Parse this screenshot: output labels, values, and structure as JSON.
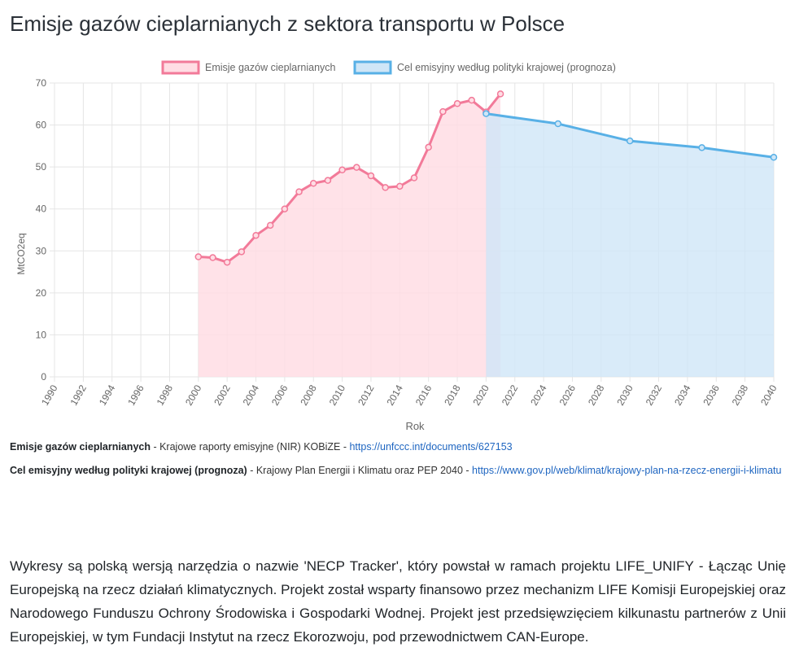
{
  "page": {
    "title": "Emisje gazów cieplarnianych z sektora transportu w Polsce"
  },
  "chart_data": {
    "type": "area",
    "xlabel": "Rok",
    "ylabel": "MtCO2eq",
    "xlim": [
      1990,
      2040
    ],
    "ylim": [
      0,
      70
    ],
    "x_ticks": [
      "1990",
      "1992",
      "1994",
      "1996",
      "1998",
      "2000",
      "2002",
      "2004",
      "2006",
      "2008",
      "2010",
      "2012",
      "2014",
      "2016",
      "2018",
      "2020",
      "2022",
      "2024",
      "2026",
      "2028",
      "2030",
      "2032",
      "2034",
      "2036",
      "2038",
      "2040"
    ],
    "y_ticks": [
      "0",
      "10",
      "20",
      "30",
      "40",
      "50",
      "60",
      "70"
    ],
    "grid": true,
    "legend_position": "top",
    "series": [
      {
        "name": "Emisje gazów cieplarnianych",
        "color": "#f27a99",
        "fill": "#ffdde4",
        "x": [
          2000,
          2001,
          2002,
          2003,
          2004,
          2005,
          2006,
          2007,
          2008,
          2009,
          2010,
          2011,
          2012,
          2013,
          2014,
          2015,
          2016,
          2017,
          2018,
          2019,
          2020,
          2021
        ],
        "y": [
          28.6,
          28.4,
          27.3,
          29.8,
          33.7,
          36.1,
          40.0,
          44.1,
          46.1,
          46.8,
          49.3,
          49.9,
          47.9,
          45.1,
          45.4,
          47.4,
          54.7,
          63.2,
          65.1,
          65.9,
          63.1,
          67.4
        ]
      },
      {
        "name": "Cel emisyjny według polityki krajowej (prognoza)",
        "color": "#58b0e6",
        "fill": "#cfe6f7",
        "x": [
          2020,
          2025,
          2030,
          2035,
          2040
        ],
        "y": [
          62.7,
          60.3,
          56.2,
          54.6,
          52.3
        ]
      }
    ]
  },
  "sources": [
    {
      "name": "Emisje gazów cieplarnianych",
      "text": " - Krajowe raporty emisyjne (NIR) KOBiZE - ",
      "link": "https://unfccc.int/documents/627153"
    },
    {
      "name": "Cel emisyjny według polityki krajowej (prognoza)",
      "text": " - Krajowy Plan Energii i Klimatu oraz PEP 2040 - ",
      "link": "https://www.gov.pl/web/klimat/krajowy-plan-na-rzecz-energii-i-klimatu"
    }
  ],
  "description": "Wykresy są polską wersją narzędzia o nazwie 'NECP Tracker', który powstał w ramach projektu LIFE_UNIFY - Łącząc Unię Europejską na rzecz działań klimatycznych. Projekt został wsparty finansowo przez mechanizm LIFE Komisji Europejskiej oraz Narodowego Funduszu Ochrony Środowiska i Gospodarki Wodnej. Projekt jest przedsięwzięciem kilkunastu partnerów z Unii Europejskiej, w tym Fundacji Instytut na rzecz Ekorozwoju, pod przewodnictwem CAN-Europe."
}
